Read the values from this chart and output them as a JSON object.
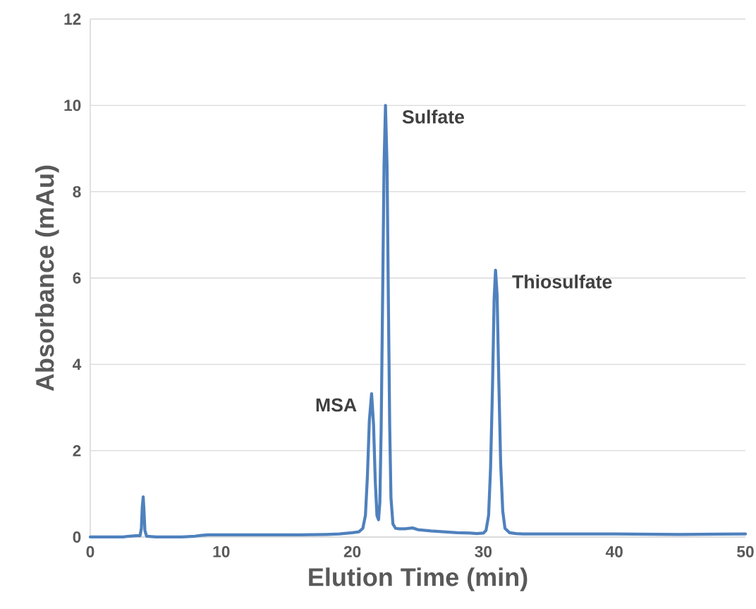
{
  "chart_data": {
    "type": "line",
    "xlabel": "Elution Time (min)",
    "ylabel": "Absorbance (mAu)",
    "xlim": [
      0,
      50
    ],
    "xticks": [
      0,
      10,
      20,
      30,
      40,
      50
    ],
    "ylim": [
      0,
      12
    ],
    "yticks": [
      0,
      2,
      4,
      6,
      8,
      10,
      12
    ],
    "grid": "y",
    "marker": "none",
    "line_style": "solid",
    "series": [
      {
        "color": "#4f81bd",
        "x": [
          0,
          2.5,
          3,
          3.5,
          3.8,
          3.9,
          3.97,
          4.04,
          4.1,
          4.17,
          4.3,
          5,
          6,
          7,
          7.5,
          8,
          8.5,
          9,
          10,
          12,
          14,
          16,
          18,
          19,
          20,
          20.5,
          20.8,
          21.0,
          21.15,
          21.3,
          21.47,
          21.62,
          21.75,
          21.88,
          22.0,
          22.1,
          22.2,
          22.3,
          22.42,
          22.53,
          22.65,
          22.75,
          22.85,
          22.95,
          23.1,
          23.3,
          23.6,
          24,
          24.6,
          25,
          26,
          27,
          28,
          29,
          29.5,
          30,
          30.2,
          30.4,
          30.55,
          30.7,
          30.82,
          30.93,
          31.05,
          31.18,
          31.32,
          31.48,
          31.65,
          32,
          32.5,
          33,
          35,
          40,
          45,
          50
        ],
        "values": [
          0,
          0,
          0.02,
          0.03,
          0.03,
          0.2,
          0.7,
          0.93,
          0.6,
          0.15,
          0.02,
          0,
          0,
          0,
          0.01,
          0.02,
          0.04,
          0.05,
          0.05,
          0.05,
          0.05,
          0.05,
          0.06,
          0.07,
          0.1,
          0.12,
          0.2,
          0.5,
          1.4,
          2.7,
          3.32,
          2.6,
          1.3,
          0.5,
          0.4,
          0.8,
          2.5,
          5.2,
          8.6,
          10.0,
          8.6,
          5.5,
          2.6,
          0.9,
          0.3,
          0.2,
          0.19,
          0.19,
          0.21,
          0.17,
          0.14,
          0.12,
          0.1,
          0.09,
          0.08,
          0.09,
          0.15,
          0.5,
          1.6,
          3.5,
          5.5,
          6.18,
          5.6,
          3.6,
          1.7,
          0.6,
          0.2,
          0.1,
          0.08,
          0.07,
          0.07,
          0.07,
          0.06,
          0.07
        ]
      }
    ],
    "annotations": [
      {
        "text": "MSA",
        "x": 21.47,
        "y": 3.32
      },
      {
        "text": "Sulfate",
        "x": 22.53,
        "y": 10.0
      },
      {
        "text": "Thiosulfate",
        "x": 30.93,
        "y": 6.18
      }
    ]
  }
}
